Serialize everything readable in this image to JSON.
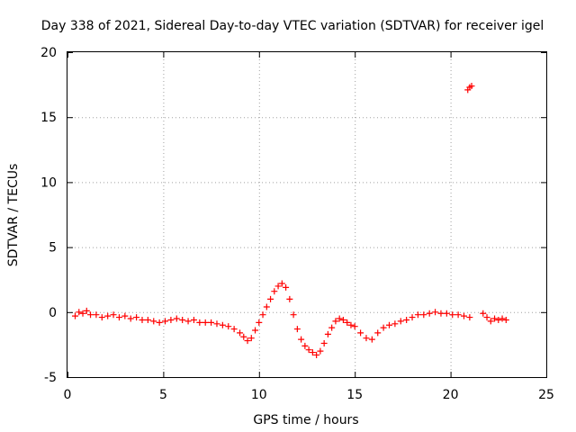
{
  "chart_data": {
    "type": "scatter",
    "title": "Day 338 of 2021, Sidereal Day-to-day VTEC variation (SDTVAR) for receiver igel",
    "xlabel": "GPS time / hours",
    "ylabel": "SDTVAR / TECUs",
    "xlim": [
      0,
      25
    ],
    "ylim": [
      -5,
      20
    ],
    "xticks": [
      "0",
      "5",
      "10",
      "15",
      "20",
      "25"
    ],
    "yticks": [
      "-5",
      "0",
      "5",
      "10",
      "15",
      "20"
    ],
    "grid": true,
    "marker": "+",
    "color": "#ff0000",
    "series": [
      {
        "name": "SDTVAR",
        "x": [
          0.4,
          0.6,
          0.8,
          1.0,
          1.2,
          1.5,
          1.8,
          2.1,
          2.4,
          2.7,
          3.0,
          3.3,
          3.6,
          3.9,
          4.2,
          4.5,
          4.8,
          5.1,
          5.4,
          5.7,
          6.0,
          6.3,
          6.6,
          6.9,
          7.2,
          7.5,
          7.8,
          8.1,
          8.4,
          8.7,
          9.0,
          9.2,
          9.4,
          9.6,
          9.8,
          10.0,
          10.2,
          10.4,
          10.6,
          10.8,
          11.0,
          11.2,
          11.4,
          11.6,
          11.8,
          12.0,
          12.2,
          12.4,
          12.6,
          12.8,
          13.0,
          13.2,
          13.4,
          13.6,
          13.8,
          14.0,
          14.2,
          14.4,
          14.6,
          14.8,
          15.0,
          15.3,
          15.6,
          15.9,
          16.2,
          16.5,
          16.8,
          17.1,
          17.4,
          17.7,
          18.0,
          18.3,
          18.6,
          18.9,
          19.2,
          19.5,
          19.8,
          20.1,
          20.4,
          20.7,
          21.0,
          21.7,
          21.9,
          22.1,
          22.3,
          22.5,
          22.7,
          22.9,
          20.9,
          21.0,
          21.1
        ],
        "y": [
          -0.3,
          0.0,
          -0.1,
          0.1,
          -0.2,
          -0.2,
          -0.4,
          -0.3,
          -0.2,
          -0.4,
          -0.3,
          -0.5,
          -0.4,
          -0.6,
          -0.6,
          -0.7,
          -0.8,
          -0.7,
          -0.6,
          -0.5,
          -0.6,
          -0.7,
          -0.6,
          -0.8,
          -0.8,
          -0.8,
          -0.9,
          -1.0,
          -1.1,
          -1.3,
          -1.6,
          -1.9,
          -2.2,
          -2.0,
          -1.4,
          -0.8,
          -0.2,
          0.4,
          1.0,
          1.6,
          2.0,
          2.2,
          1.9,
          1.0,
          -0.2,
          -1.3,
          -2.1,
          -2.6,
          -2.9,
          -3.1,
          -3.3,
          -3.0,
          -2.4,
          -1.7,
          -1.2,
          -0.7,
          -0.5,
          -0.6,
          -0.8,
          -1.0,
          -1.1,
          -1.6,
          -2.0,
          -2.1,
          -1.6,
          -1.2,
          -1.0,
          -0.9,
          -0.7,
          -0.6,
          -0.4,
          -0.2,
          -0.2,
          -0.1,
          0.0,
          -0.1,
          -0.1,
          -0.2,
          -0.2,
          -0.3,
          -0.4,
          -0.1,
          -0.4,
          -0.7,
          -0.5,
          -0.6,
          -0.5,
          -0.6,
          17.1,
          17.3,
          17.4
        ]
      }
    ]
  }
}
